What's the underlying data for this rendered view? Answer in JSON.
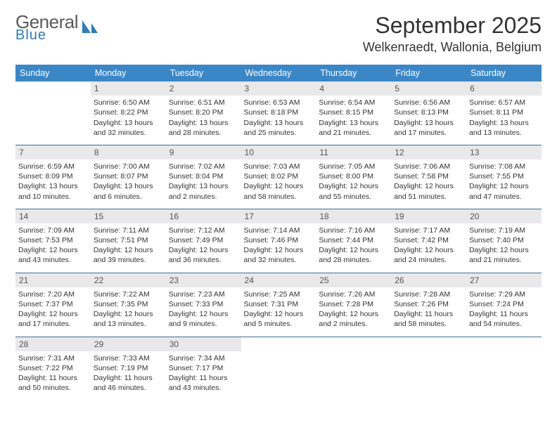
{
  "brand": {
    "name1": "General",
    "name2": "Blue",
    "accent": "#2b7bbf"
  },
  "title": "September 2025",
  "location": "Welkenraedt, Wallonia, Belgium",
  "colors": {
    "header_bg": "#3a87c8",
    "header_text": "#ffffff",
    "daynum_bg": "#e9e9e9",
    "daynum_text": "#555555",
    "row_border": "#3a6fa0",
    "body_text": "#333333"
  },
  "columns": [
    "Sunday",
    "Monday",
    "Tuesday",
    "Wednesday",
    "Thursday",
    "Friday",
    "Saturday"
  ],
  "weeks": [
    [
      {
        "day": "",
        "lines": []
      },
      {
        "day": "1",
        "lines": [
          "Sunrise: 6:50 AM",
          "Sunset: 8:22 PM",
          "Daylight: 13 hours and 32 minutes."
        ]
      },
      {
        "day": "2",
        "lines": [
          "Sunrise: 6:51 AM",
          "Sunset: 8:20 PM",
          "Daylight: 13 hours and 28 minutes."
        ]
      },
      {
        "day": "3",
        "lines": [
          "Sunrise: 6:53 AM",
          "Sunset: 8:18 PM",
          "Daylight: 13 hours and 25 minutes."
        ]
      },
      {
        "day": "4",
        "lines": [
          "Sunrise: 6:54 AM",
          "Sunset: 8:15 PM",
          "Daylight: 13 hours and 21 minutes."
        ]
      },
      {
        "day": "5",
        "lines": [
          "Sunrise: 6:56 AM",
          "Sunset: 8:13 PM",
          "Daylight: 13 hours and 17 minutes."
        ]
      },
      {
        "day": "6",
        "lines": [
          "Sunrise: 6:57 AM",
          "Sunset: 8:11 PM",
          "Daylight: 13 hours and 13 minutes."
        ]
      }
    ],
    [
      {
        "day": "7",
        "lines": [
          "Sunrise: 6:59 AM",
          "Sunset: 8:09 PM",
          "Daylight: 13 hours and 10 minutes."
        ]
      },
      {
        "day": "8",
        "lines": [
          "Sunrise: 7:00 AM",
          "Sunset: 8:07 PM",
          "Daylight: 13 hours and 6 minutes."
        ]
      },
      {
        "day": "9",
        "lines": [
          "Sunrise: 7:02 AM",
          "Sunset: 8:04 PM",
          "Daylight: 13 hours and 2 minutes."
        ]
      },
      {
        "day": "10",
        "lines": [
          "Sunrise: 7:03 AM",
          "Sunset: 8:02 PM",
          "Daylight: 12 hours and 58 minutes."
        ]
      },
      {
        "day": "11",
        "lines": [
          "Sunrise: 7:05 AM",
          "Sunset: 8:00 PM",
          "Daylight: 12 hours and 55 minutes."
        ]
      },
      {
        "day": "12",
        "lines": [
          "Sunrise: 7:06 AM",
          "Sunset: 7:58 PM",
          "Daylight: 12 hours and 51 minutes."
        ]
      },
      {
        "day": "13",
        "lines": [
          "Sunrise: 7:08 AM",
          "Sunset: 7:55 PM",
          "Daylight: 12 hours and 47 minutes."
        ]
      }
    ],
    [
      {
        "day": "14",
        "lines": [
          "Sunrise: 7:09 AM",
          "Sunset: 7:53 PM",
          "Daylight: 12 hours and 43 minutes."
        ]
      },
      {
        "day": "15",
        "lines": [
          "Sunrise: 7:11 AM",
          "Sunset: 7:51 PM",
          "Daylight: 12 hours and 39 minutes."
        ]
      },
      {
        "day": "16",
        "lines": [
          "Sunrise: 7:12 AM",
          "Sunset: 7:49 PM",
          "Daylight: 12 hours and 36 minutes."
        ]
      },
      {
        "day": "17",
        "lines": [
          "Sunrise: 7:14 AM",
          "Sunset: 7:46 PM",
          "Daylight: 12 hours and 32 minutes."
        ]
      },
      {
        "day": "18",
        "lines": [
          "Sunrise: 7:16 AM",
          "Sunset: 7:44 PM",
          "Daylight: 12 hours and 28 minutes."
        ]
      },
      {
        "day": "19",
        "lines": [
          "Sunrise: 7:17 AM",
          "Sunset: 7:42 PM",
          "Daylight: 12 hours and 24 minutes."
        ]
      },
      {
        "day": "20",
        "lines": [
          "Sunrise: 7:19 AM",
          "Sunset: 7:40 PM",
          "Daylight: 12 hours and 21 minutes."
        ]
      }
    ],
    [
      {
        "day": "21",
        "lines": [
          "Sunrise: 7:20 AM",
          "Sunset: 7:37 PM",
          "Daylight: 12 hours and 17 minutes."
        ]
      },
      {
        "day": "22",
        "lines": [
          "Sunrise: 7:22 AM",
          "Sunset: 7:35 PM",
          "Daylight: 12 hours and 13 minutes."
        ]
      },
      {
        "day": "23",
        "lines": [
          "Sunrise: 7:23 AM",
          "Sunset: 7:33 PM",
          "Daylight: 12 hours and 9 minutes."
        ]
      },
      {
        "day": "24",
        "lines": [
          "Sunrise: 7:25 AM",
          "Sunset: 7:31 PM",
          "Daylight: 12 hours and 5 minutes."
        ]
      },
      {
        "day": "25",
        "lines": [
          "Sunrise: 7:26 AM",
          "Sunset: 7:28 PM",
          "Daylight: 12 hours and 2 minutes."
        ]
      },
      {
        "day": "26",
        "lines": [
          "Sunrise: 7:28 AM",
          "Sunset: 7:26 PM",
          "Daylight: 11 hours and 58 minutes."
        ]
      },
      {
        "day": "27",
        "lines": [
          "Sunrise: 7:29 AM",
          "Sunset: 7:24 PM",
          "Daylight: 11 hours and 54 minutes."
        ]
      }
    ],
    [
      {
        "day": "28",
        "lines": [
          "Sunrise: 7:31 AM",
          "Sunset: 7:22 PM",
          "Daylight: 11 hours and 50 minutes."
        ]
      },
      {
        "day": "29",
        "lines": [
          "Sunrise: 7:33 AM",
          "Sunset: 7:19 PM",
          "Daylight: 11 hours and 46 minutes."
        ]
      },
      {
        "day": "30",
        "lines": [
          "Sunrise: 7:34 AM",
          "Sunset: 7:17 PM",
          "Daylight: 11 hours and 43 minutes."
        ]
      },
      {
        "day": "",
        "lines": []
      },
      {
        "day": "",
        "lines": []
      },
      {
        "day": "",
        "lines": []
      },
      {
        "day": "",
        "lines": []
      }
    ]
  ]
}
